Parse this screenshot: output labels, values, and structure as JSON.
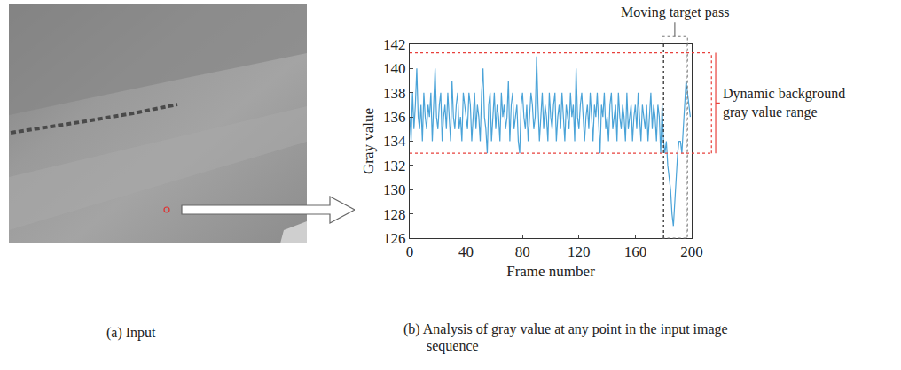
{
  "chart_data": {
    "type": "line",
    "x_label": "Frame number",
    "y_label": "Gray value",
    "x": [
      0,
      1,
      2,
      3,
      4,
      5,
      6,
      7,
      8,
      9,
      10,
      11,
      12,
      13,
      14,
      15,
      16,
      17,
      18,
      19,
      20,
      21,
      22,
      23,
      24,
      25,
      26,
      27,
      28,
      29,
      30,
      31,
      32,
      33,
      34,
      35,
      36,
      37,
      38,
      39,
      40,
      41,
      42,
      43,
      44,
      45,
      46,
      47,
      48,
      49,
      50,
      51,
      52,
      53,
      54,
      55,
      56,
      57,
      58,
      59,
      60,
      61,
      62,
      63,
      64,
      65,
      66,
      67,
      68,
      69,
      70,
      71,
      72,
      73,
      74,
      75,
      76,
      77,
      78,
      79,
      80,
      81,
      82,
      83,
      84,
      85,
      86,
      87,
      88,
      89,
      90,
      91,
      92,
      93,
      94,
      95,
      96,
      97,
      98,
      99,
      100,
      101,
      102,
      103,
      104,
      105,
      106,
      107,
      108,
      109,
      110,
      111,
      112,
      113,
      114,
      115,
      116,
      117,
      118,
      119,
      120,
      121,
      122,
      123,
      124,
      125,
      126,
      127,
      128,
      129,
      130,
      131,
      132,
      133,
      134,
      135,
      136,
      137,
      138,
      139,
      140,
      141,
      142,
      143,
      144,
      145,
      146,
      147,
      148,
      149,
      150,
      151,
      152,
      153,
      154,
      155,
      156,
      157,
      158,
      159,
      160,
      161,
      162,
      163,
      164,
      165,
      166,
      167,
      168,
      169,
      170,
      171,
      172,
      173,
      174,
      175,
      176,
      177,
      178,
      179,
      180,
      181,
      182,
      183,
      184,
      185,
      186,
      187,
      188,
      189,
      190,
      191,
      192,
      193,
      194,
      195,
      196,
      197,
      198,
      199
    ],
    "values": [
      136,
      134,
      138,
      135,
      137,
      140,
      136,
      135,
      137,
      134,
      138,
      136,
      135,
      137,
      136,
      138,
      134,
      137,
      140,
      136,
      135,
      137,
      138,
      134,
      136,
      137,
      135,
      138,
      136,
      134,
      139,
      136,
      135,
      137,
      138,
      135,
      136,
      134,
      138,
      137,
      136,
      135,
      138,
      137,
      134,
      136,
      138,
      135,
      137,
      136,
      134,
      138,
      140,
      136,
      135,
      133,
      137,
      138,
      134,
      136,
      138,
      135,
      137,
      136,
      134,
      138,
      136,
      137,
      135,
      136,
      139,
      134,
      137,
      138,
      135,
      136,
      137,
      134,
      133,
      137,
      138,
      136,
      135,
      137,
      134,
      136,
      138,
      137,
      135,
      136,
      141,
      137,
      134,
      136,
      138,
      135,
      137,
      136,
      134,
      138,
      136,
      135,
      137,
      138,
      134,
      136,
      137,
      135,
      138,
      136,
      134,
      137,
      136,
      135,
      138,
      136,
      137,
      134,
      140,
      136,
      135,
      137,
      138,
      136,
      134,
      136,
      137,
      135,
      138,
      136,
      134,
      137,
      136,
      138,
      135,
      133,
      137,
      136,
      138,
      135,
      136,
      134,
      137,
      138,
      135,
      136,
      137,
      134,
      138,
      136,
      135,
      137,
      136,
      134,
      138,
      135,
      136,
      137,
      134,
      136,
      137,
      135,
      138,
      136,
      134,
      137,
      136,
      135,
      137,
      134,
      136,
      138,
      135,
      137,
      136,
      134,
      137,
      136,
      133,
      137,
      134,
      133,
      134,
      132,
      131,
      130,
      128,
      127,
      129,
      131,
      133,
      134,
      134,
      133,
      135,
      137,
      139,
      138,
      137,
      136
    ],
    "color": "#4aa3d8",
    "xlim": [
      0,
      200
    ],
    "xticks": [
      0,
      40,
      80,
      120,
      160,
      200
    ],
    "ylim": [
      126,
      142
    ],
    "yticks": [
      126,
      128,
      130,
      132,
      134,
      136,
      138,
      140,
      142
    ],
    "grid": false,
    "target_pass": [
      180,
      196
    ],
    "target_pass_label": "Moving target pass",
    "background_range": [
      133,
      141.3
    ],
    "background_range_label": "Dynamic background gray value range"
  },
  "figure": {
    "captions": [
      "(a) Input",
      "(b) Analysis of gray value at any point in the input image sequence"
    ]
  }
}
